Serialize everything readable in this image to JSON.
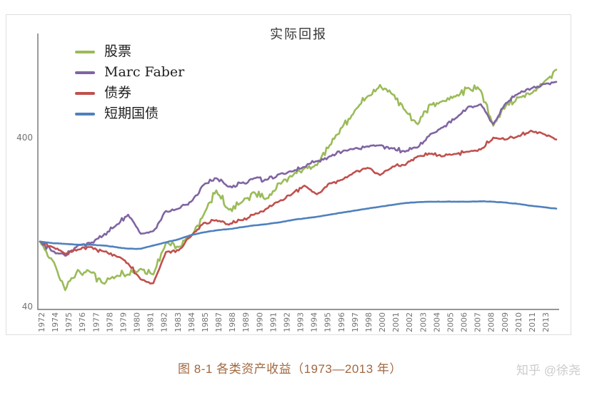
{
  "chart_data": {
    "type": "line",
    "title": "实际回报",
    "y_scale": "log",
    "y_axis_tick_labels": [
      {
        "value": 400,
        "label": "400"
      },
      {
        "value": 40,
        "label": "40"
      }
    ],
    "ylim": [
      36,
      1100
    ],
    "x_years": {
      "start": 1973,
      "step": 1,
      "count": 42
    },
    "x_tick_labels": [
      "1972",
      "1974",
      "1975",
      "1976",
      "1977",
      "1978",
      "1979",
      "1980",
      "1981",
      "1982",
      "1983",
      "1984",
      "1985",
      "1987",
      "1988",
      "1989",
      "1990",
      "1991",
      "1992",
      "1993",
      "1994",
      "1995",
      "1996",
      "1997",
      "1998",
      "2000",
      "2001",
      "2002",
      "2003",
      "2004",
      "2005",
      "2006",
      "2007",
      "2008",
      "2009",
      "2010",
      "2011",
      "2013"
    ],
    "legend_position": "top-left",
    "grid": false,
    "series": [
      {
        "key": "stocks",
        "name": "股票",
        "color": "#9BBB59",
        "values": [
          97,
          75,
          50,
          66,
          64,
          55,
          60,
          62,
          67,
          62,
          95,
          90,
          104,
          140,
          195,
          150,
          165,
          190,
          175,
          215,
          235,
          263,
          275,
          360,
          460,
          580,
          700,
          820,
          720,
          580,
          480,
          630,
          660,
          700,
          790,
          760,
          470,
          620,
          690,
          730,
          850,
          1010
        ]
      },
      {
        "key": "marc-faber",
        "name": "Marc Faber",
        "color": "#8064A2",
        "values": [
          97,
          85,
          80,
          92,
          95,
          105,
          120,
          140,
          108,
          112,
          147,
          152,
          167,
          210,
          230,
          205,
          215,
          230,
          225,
          243,
          252,
          268,
          290,
          310,
          330,
          345,
          355,
          360,
          345,
          330,
          350,
          420,
          460,
          520,
          610,
          630,
          480,
          640,
          730,
          780,
          830,
          855
        ]
      },
      {
        "key": "bonds",
        "name": "债券",
        "color": "#C0504D",
        "values": [
          97,
          90,
          82,
          87,
          90,
          85,
          80,
          72,
          58,
          55,
          84,
          86,
          105,
          125,
          130,
          122,
          130,
          140,
          152,
          168,
          185,
          208,
          185,
          215,
          225,
          250,
          265,
          240,
          270,
          275,
          310,
          320,
          310,
          320,
          330,
          340,
          400,
          390,
          410,
          440,
          420,
          390
        ]
      },
      {
        "key": "tbills",
        "name": "短期国债",
        "color": "#4F81BD",
        "values": [
          97,
          95,
          94,
          93,
          93,
          92,
          90,
          88,
          88,
          92,
          96,
          100,
          106,
          110,
          113,
          115,
          118,
          121,
          123,
          126,
          130,
          133,
          136,
          140,
          144,
          148,
          152,
          156,
          160,
          164,
          166,
          167,
          167,
          167,
          167,
          168,
          167,
          165,
          162,
          158,
          155,
          152
        ]
      }
    ]
  },
  "caption": "图 8-1 各类资产收益（1973—2013 年）",
  "watermark": "知乎 @徐尧",
  "colors": {
    "caption": "#a2673e",
    "watermark": "#cccccc",
    "axis": "#595959",
    "tick_text": "#737373",
    "frame_border": "#dedede"
  }
}
